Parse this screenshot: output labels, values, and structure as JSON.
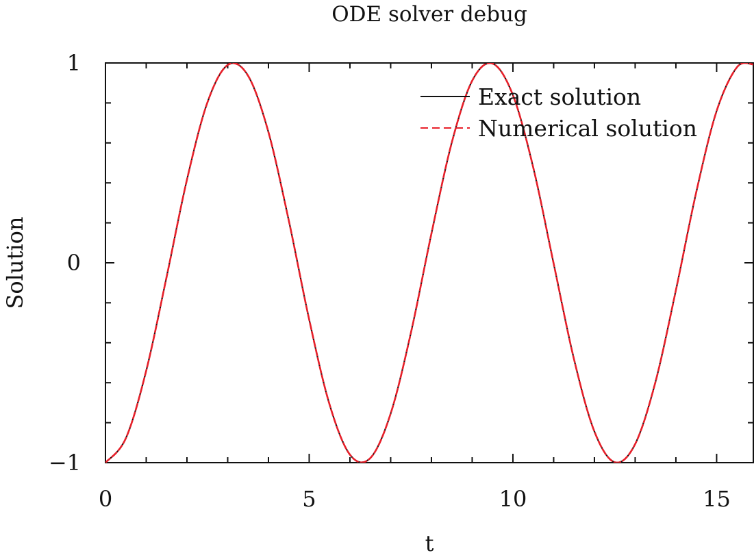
{
  "chart_data": {
    "type": "line",
    "title": "ODE solver debug",
    "xlabel": "t",
    "ylabel": "Solution",
    "xlim": [
      0,
      15.9
    ],
    "ylim": [
      -1,
      1
    ],
    "grid": false,
    "legend_position": "top-right",
    "x_ticks": [
      {
        "value": 0,
        "label": "0"
      },
      {
        "value": 5,
        "label": "5"
      },
      {
        "value": 10,
        "label": "10"
      },
      {
        "value": 15,
        "label": "15"
      }
    ],
    "y_ticks": [
      {
        "value": -1,
        "label": "−1"
      },
      {
        "value": 0,
        "label": "0"
      },
      {
        "value": 1,
        "label": "1"
      }
    ],
    "series": [
      {
        "name": "Exact solution",
        "color": "#111111",
        "line_style": "solid",
        "x": [
          0,
          0.5,
          1,
          1.5,
          2,
          2.5,
          3,
          3.5,
          4,
          4.5,
          5,
          5.5,
          6,
          6.5,
          7,
          7.5,
          8,
          8.5,
          9,
          9.5,
          10,
          10.5,
          11,
          11.5,
          12,
          12.5,
          13,
          13.5,
          14,
          14.5,
          15,
          15.5,
          15.9
        ],
        "y": [
          -1.0,
          -0.878,
          -0.54,
          -0.071,
          0.416,
          0.801,
          0.99,
          0.936,
          0.654,
          0.211,
          -0.284,
          -0.709,
          -0.96,
          -0.977,
          -0.754,
          -0.347,
          0.146,
          0.602,
          0.911,
          0.997,
          0.839,
          0.476,
          -0.004,
          -0.483,
          -0.844,
          -0.998,
          -0.907,
          -0.595,
          -0.137,
          0.354,
          0.76,
          0.979,
          0.993
        ]
      },
      {
        "name": "Numerical solution",
        "color": "#e8202a",
        "line_style": "dashed",
        "x": [
          0,
          0.5,
          1,
          1.5,
          2,
          2.5,
          3,
          3.5,
          4,
          4.5,
          5,
          5.5,
          6,
          6.5,
          7,
          7.5,
          8,
          8.5,
          9,
          9.5,
          10,
          10.5,
          11,
          11.5,
          12,
          12.5,
          13,
          13.5,
          14,
          14.5,
          15,
          15.5,
          15.9
        ],
        "y": [
          -1.0,
          -0.878,
          -0.54,
          -0.071,
          0.416,
          0.801,
          0.99,
          0.936,
          0.654,
          0.211,
          -0.284,
          -0.709,
          -0.96,
          -0.977,
          -0.754,
          -0.347,
          0.146,
          0.602,
          0.911,
          0.997,
          0.839,
          0.476,
          -0.004,
          -0.483,
          -0.844,
          -0.998,
          -0.907,
          -0.595,
          -0.137,
          0.354,
          0.76,
          0.979,
          0.993
        ]
      }
    ]
  }
}
